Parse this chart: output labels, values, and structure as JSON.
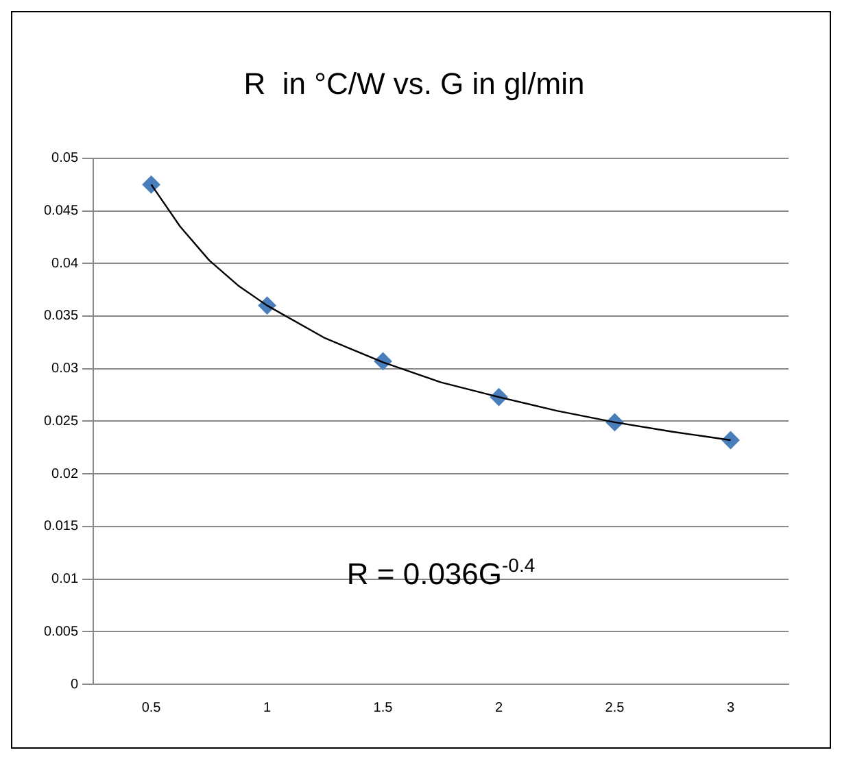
{
  "chart_data": {
    "type": "scatter",
    "title": "R  in °C/W vs. G in gl/min",
    "x": [
      0.5,
      1,
      1.5,
      2,
      2.5,
      3
    ],
    "series": [
      {
        "color": "#4a7ebb",
        "values": [
          0.0475,
          0.036,
          0.0307,
          0.0273,
          0.0249,
          0.0232
        ]
      },
      {
        "type": "line",
        "color": "#000000",
        "marker": "none",
        "x": [
          0.5,
          0.625,
          0.75,
          0.875,
          1,
          1.25,
          1.5,
          1.75,
          2,
          2.25,
          2.5,
          2.75,
          3
        ],
        "values": [
          0.0475,
          0.0435,
          0.0403,
          0.0379,
          0.036,
          0.0329,
          0.0306,
          0.0287,
          0.0273,
          0.026,
          0.0249,
          0.024,
          0.0232
        ]
      }
    ],
    "marker": "diamond",
    "line_style": "solid",
    "xlim": [
      0.25,
      3.25
    ],
    "xticks": [
      0.5,
      1,
      1.5,
      2,
      2.5,
      3
    ],
    "ylim": [
      0,
      0.05
    ],
    "yticks": [
      0,
      0.005,
      0.01,
      0.015,
      0.02,
      0.025,
      0.03,
      0.035,
      0.04,
      0.045,
      0.05
    ],
    "grid": "y",
    "legend": false,
    "annotations": [
      "R = 0.036G$^{-0.4}$"
    ]
  }
}
